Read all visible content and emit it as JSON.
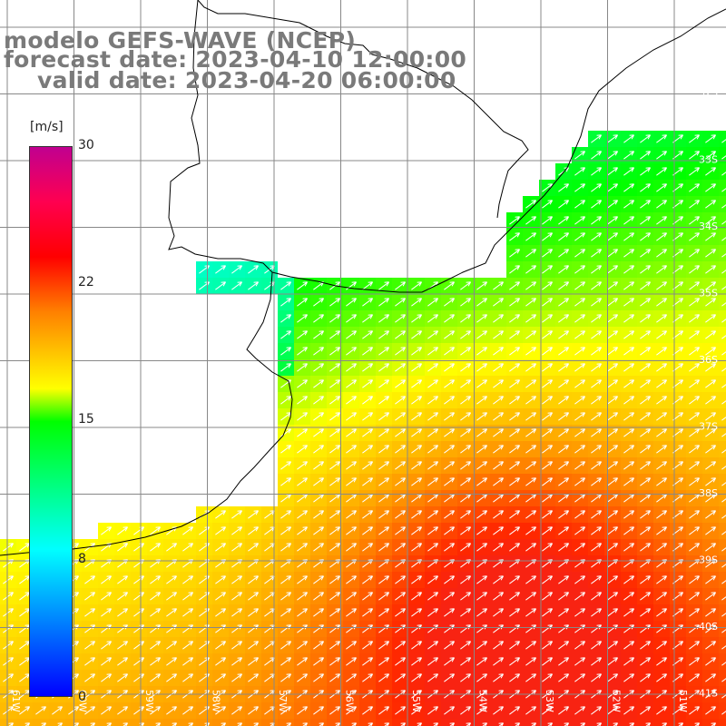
{
  "title": {
    "line1": "modelo GEFS-WAVE (NCEP)",
    "line2": "forecast date: 2023-04-10 12:00:00",
    "line3": "valid date: 2023-04-20 06:00:00"
  },
  "colorbar": {
    "units": "[m/s]",
    "tick_labels": [
      "30",
      "22",
      "15",
      "8",
      "0"
    ],
    "colors": [
      "#0000ff",
      "#00ffff",
      "#00ff00",
      "#ffff00",
      "#ff8000",
      "#ff0000",
      "#c00090"
    ]
  },
  "map": {
    "lat_labels": [
      "32S",
      "33S",
      "34S",
      "35S",
      "36S",
      "37S",
      "38S",
      "39S",
      "40S",
      "41S"
    ],
    "lon_labels": [
      "61W",
      "60W",
      "59W",
      "58W",
      "57W",
      "56W",
      "55W",
      "54W",
      "53W",
      "52W",
      "51W"
    ],
    "grid_color": "#888888",
    "coast_color": "#000000",
    "arrow_color": "#ffffff",
    "arrow_direction": "northeast"
  }
}
